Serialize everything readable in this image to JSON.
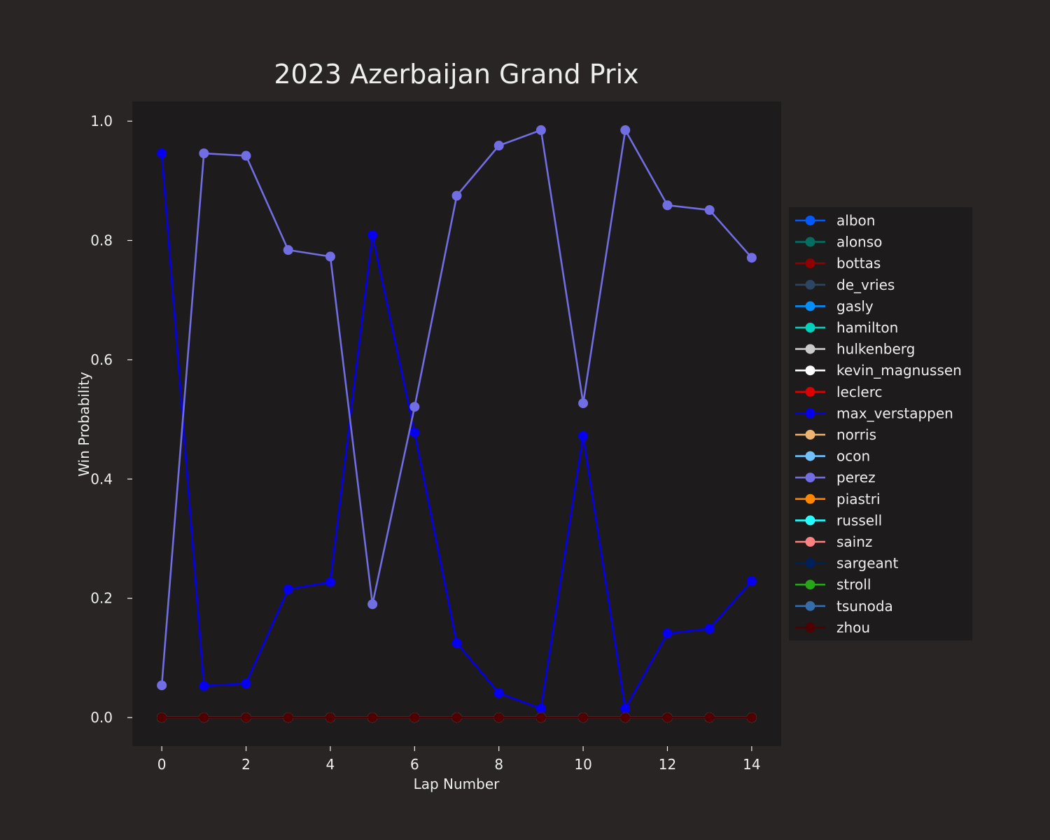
{
  "chart_data": {
    "type": "line",
    "title": "2023 Azerbaijan Grand Prix",
    "xlabel": "Lap Number",
    "ylabel": "Win Probability",
    "xlim": [
      -0.7,
      14.7
    ],
    "ylim": [
      -0.048,
      1.033
    ],
    "x_ticks": [
      "0",
      "2",
      "4",
      "6",
      "8",
      "10",
      "12",
      "14"
    ],
    "y_ticks": [
      "0.0",
      "0.2",
      "0.4",
      "0.6",
      "0.8",
      "1.0"
    ],
    "grid": false,
    "legend_position": "center-right",
    "colors": {
      "figure_background": "#292524",
      "plot_background": "#1d1b1b",
      "text": "#eeeeee"
    },
    "x": [
      0,
      1,
      2,
      3,
      4,
      5,
      6,
      7,
      8,
      9,
      10,
      11,
      12,
      13,
      14
    ],
    "series": [
      {
        "name": "albon",
        "color": "#005aff",
        "values": [
          0,
          0,
          0,
          0,
          0,
          0,
          0,
          0,
          0,
          0,
          0,
          0,
          0,
          0,
          0
        ]
      },
      {
        "name": "alonso",
        "color": "#006f62",
        "values": [
          0,
          0,
          0,
          0,
          0,
          0,
          0,
          0,
          0,
          0,
          0,
          0,
          0,
          0,
          0
        ]
      },
      {
        "name": "bottas",
        "color": "#900000",
        "values": [
          0,
          0,
          0,
          0,
          0,
          0,
          0,
          0,
          0,
          0,
          0,
          0,
          0,
          0,
          0
        ]
      },
      {
        "name": "de_vries",
        "color": "#2b4562",
        "values": [
          0,
          0,
          0,
          0,
          0,
          0,
          0,
          0,
          0,
          0,
          0,
          0,
          0,
          0,
          0
        ]
      },
      {
        "name": "gasly",
        "color": "#0090ff",
        "values": [
          0,
          0,
          0,
          0,
          0,
          0,
          0,
          0,
          0,
          0,
          0,
          0,
          0,
          0,
          0
        ]
      },
      {
        "name": "hamilton",
        "color": "#00d2be",
        "values": [
          0,
          0,
          0,
          0,
          0,
          0,
          0,
          0,
          0,
          0,
          0,
          0,
          0,
          0,
          0
        ]
      },
      {
        "name": "hulkenberg",
        "color": "#cacaca",
        "values": [
          0,
          0,
          0,
          0,
          0,
          0,
          0,
          0,
          0,
          0,
          0,
          0,
          0,
          0,
          0
        ]
      },
      {
        "name": "kevin_magnussen",
        "color": "#ffffff",
        "values": [
          0,
          0,
          0,
          0,
          0,
          0,
          0,
          0,
          0,
          0,
          0,
          0,
          0,
          0,
          0
        ]
      },
      {
        "name": "leclerc",
        "color": "#dc0000",
        "values": [
          0,
          0,
          0,
          0,
          0,
          0,
          0,
          0,
          0,
          0,
          0,
          0,
          0,
          0,
          0
        ]
      },
      {
        "name": "max_verstappen",
        "color": "#0600ef",
        "values": [
          0.946,
          0.053,
          0.057,
          0.215,
          0.227,
          0.809,
          0.478,
          0.125,
          0.041,
          0.015,
          0.472,
          0.015,
          0.141,
          0.149,
          0.229
        ]
      },
      {
        "name": "norris",
        "color": "#eeb370",
        "values": [
          0,
          0,
          0,
          0,
          0,
          0,
          0,
          0,
          0,
          0,
          0,
          0,
          0,
          0,
          0
        ]
      },
      {
        "name": "ocon",
        "color": "#70c2ff",
        "values": [
          0,
          0,
          0,
          0,
          0,
          0,
          0,
          0,
          0,
          0,
          0,
          0,
          0,
          0,
          0
        ]
      },
      {
        "name": "perez",
        "color": "#716de2",
        "values": [
          0.054,
          0.946,
          0.942,
          0.784,
          0.773,
          0.19,
          0.521,
          0.875,
          0.959,
          0.985,
          0.527,
          0.985,
          0.859,
          0.851,
          0.771
        ]
      },
      {
        "name": "piastri",
        "color": "#ff8700",
        "values": [
          0,
          0,
          0,
          0,
          0,
          0,
          0,
          0,
          0,
          0,
          0,
          0,
          0,
          0,
          0
        ]
      },
      {
        "name": "russell",
        "color": "#24ffff",
        "values": [
          0,
          0,
          0,
          0,
          0,
          0,
          0,
          0,
          0,
          0,
          0,
          0,
          0,
          0,
          0
        ]
      },
      {
        "name": "sainz",
        "color": "#ff8181",
        "values": [
          0,
          0,
          0,
          0,
          0,
          0,
          0,
          0,
          0,
          0,
          0,
          0,
          0,
          0,
          0
        ]
      },
      {
        "name": "sargeant",
        "color": "#00205b",
        "values": [
          0,
          0,
          0,
          0,
          0,
          0,
          0,
          0,
          0,
          0,
          0,
          0,
          0,
          0,
          0
        ]
      },
      {
        "name": "stroll",
        "color": "#25a617",
        "values": [
          0,
          0,
          0,
          0,
          0,
          0,
          0,
          0,
          0,
          0,
          0,
          0,
          0,
          0,
          0
        ]
      },
      {
        "name": "tsunoda",
        "color": "#356cac",
        "values": [
          0,
          0,
          0,
          0,
          0,
          0,
          0,
          0,
          0,
          0,
          0,
          0,
          0,
          0,
          0
        ]
      },
      {
        "name": "zhou",
        "color": "#500000",
        "values": [
          0,
          0,
          0,
          0,
          0,
          0,
          0,
          0,
          0,
          0,
          0,
          0,
          0,
          0,
          0
        ]
      }
    ]
  }
}
